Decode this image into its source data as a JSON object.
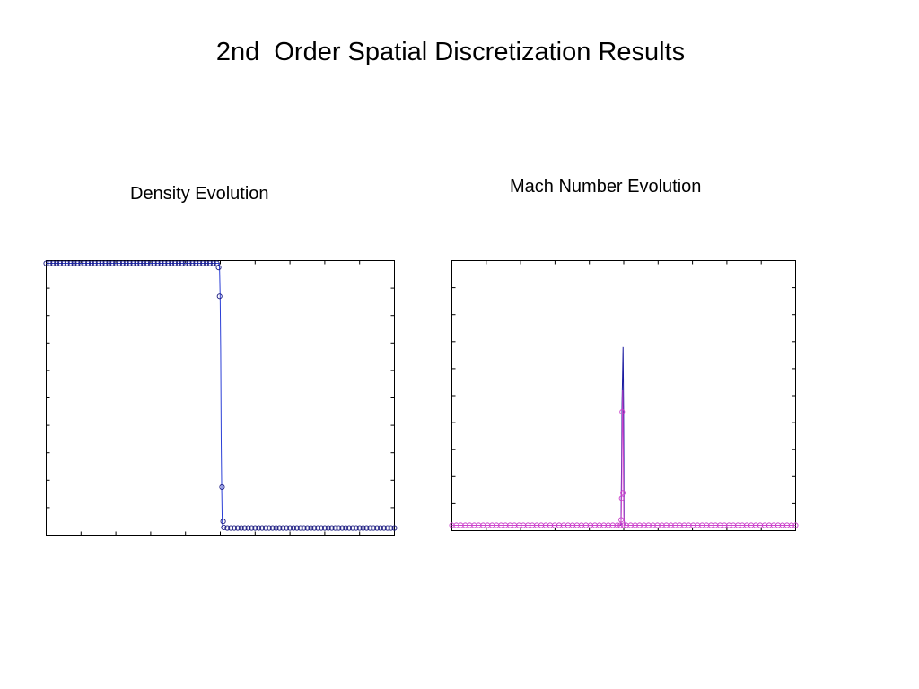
{
  "page": {
    "title": "2nd  Order Spatial Discretization Results"
  },
  "chart_data": [
    {
      "type": "line",
      "title": "Density Evolution",
      "xlim": [
        0,
        1
      ],
      "ylim": [
        0,
        1
      ],
      "xticks": [
        0.1,
        0.2,
        0.3,
        0.4,
        0.5,
        0.6,
        0.7,
        0.8,
        0.9
      ],
      "yticks": [
        0.1,
        0.2,
        0.3,
        0.4,
        0.5,
        0.6,
        0.7,
        0.8,
        0.9
      ],
      "grid": false,
      "series": [
        {
          "style": "line",
          "color": "#2b3fd6",
          "x": [
            0.0,
            0.497,
            0.498,
            0.4995,
            0.501,
            0.5025,
            0.504,
            0.5055,
            0.507,
            0.51,
            1.0
          ],
          "y": [
            0.99,
            0.99,
            0.96,
            0.87,
            0.68,
            0.35,
            0.17,
            0.05,
            0.03,
            0.026,
            0.026
          ]
        },
        {
          "style": "markers",
          "color": "#1a1a80",
          "marker": "circle",
          "x": [
            0.0,
            0.01,
            0.02,
            0.03,
            0.04,
            0.05,
            0.06,
            0.07,
            0.08,
            0.09,
            0.1,
            0.11,
            0.12,
            0.13,
            0.14,
            0.15,
            0.16,
            0.17,
            0.18,
            0.19,
            0.2,
            0.21,
            0.22,
            0.23,
            0.24,
            0.25,
            0.26,
            0.27,
            0.28,
            0.29,
            0.3,
            0.31,
            0.32,
            0.33,
            0.34,
            0.35,
            0.36,
            0.37,
            0.38,
            0.39,
            0.4,
            0.41,
            0.42,
            0.43,
            0.44,
            0.45,
            0.46,
            0.47,
            0.48,
            0.49,
            0.495,
            0.498,
            0.505,
            0.508,
            0.51,
            0.52,
            0.53,
            0.54,
            0.55,
            0.56,
            0.57,
            0.58,
            0.59,
            0.6,
            0.61,
            0.62,
            0.63,
            0.64,
            0.65,
            0.66,
            0.67,
            0.68,
            0.69,
            0.7,
            0.71,
            0.72,
            0.73,
            0.74,
            0.75,
            0.76,
            0.77,
            0.78,
            0.79,
            0.8,
            0.81,
            0.82,
            0.83,
            0.84,
            0.85,
            0.86,
            0.87,
            0.88,
            0.89,
            0.9,
            0.91,
            0.92,
            0.93,
            0.94,
            0.95,
            0.96,
            0.97,
            0.98,
            0.99,
            1.0
          ],
          "y": [
            0.99,
            0.99,
            0.99,
            0.99,
            0.99,
            0.99,
            0.99,
            0.99,
            0.99,
            0.99,
            0.99,
            0.99,
            0.99,
            0.99,
            0.99,
            0.99,
            0.99,
            0.99,
            0.99,
            0.99,
            0.99,
            0.99,
            0.99,
            0.99,
            0.99,
            0.99,
            0.99,
            0.99,
            0.99,
            0.99,
            0.99,
            0.99,
            0.99,
            0.99,
            0.99,
            0.99,
            0.99,
            0.99,
            0.99,
            0.99,
            0.99,
            0.99,
            0.99,
            0.99,
            0.99,
            0.99,
            0.99,
            0.99,
            0.99,
            0.99,
            0.975,
            0.87,
            0.175,
            0.05,
            0.028,
            0.026,
            0.026,
            0.026,
            0.026,
            0.026,
            0.026,
            0.026,
            0.026,
            0.026,
            0.026,
            0.026,
            0.026,
            0.026,
            0.026,
            0.026,
            0.026,
            0.026,
            0.026,
            0.026,
            0.026,
            0.026,
            0.026,
            0.026,
            0.026,
            0.026,
            0.026,
            0.026,
            0.026,
            0.026,
            0.026,
            0.026,
            0.026,
            0.026,
            0.026,
            0.026,
            0.026,
            0.026,
            0.026,
            0.026,
            0.026,
            0.026,
            0.026,
            0.026,
            0.026,
            0.026,
            0.026,
            0.026,
            0.026,
            0.026
          ]
        }
      ]
    },
    {
      "type": "line",
      "title": "Mach Number Evolution",
      "xlim": [
        0,
        1
      ],
      "ylim": [
        0,
        1
      ],
      "xticks": [
        0.1,
        0.2,
        0.3,
        0.4,
        0.5,
        0.6,
        0.7,
        0.8,
        0.9
      ],
      "yticks": [
        0.1,
        0.2,
        0.3,
        0.4,
        0.5,
        0.6,
        0.7,
        0.8,
        0.9
      ],
      "grid": false,
      "series": [
        {
          "style": "line",
          "color": "#1a1aa0",
          "x": [
            0.0,
            0.49,
            0.492,
            0.4935,
            0.495,
            0.4965,
            0.498,
            0.4995,
            0.501,
            0.503,
            1.0
          ],
          "y": [
            0.02,
            0.02,
            0.02,
            0.22,
            0.47,
            0.57,
            0.68,
            0.46,
            0.04,
            0.02,
            0.02
          ]
        },
        {
          "style": "line",
          "color": "#cc44cc",
          "x": [
            0.0,
            0.49,
            0.4925,
            0.494,
            0.4955,
            0.497,
            0.4985,
            0.5,
            0.502,
            1.0
          ],
          "y": [
            0.02,
            0.02,
            0.04,
            0.14,
            0.38,
            0.52,
            0.3,
            0.06,
            0.02,
            0.02
          ]
        },
        {
          "style": "markers",
          "color": "#cc44cc",
          "marker": "circle",
          "x": [
            0.0,
            0.013,
            0.026,
            0.039,
            0.052,
            0.065,
            0.078,
            0.091,
            0.104,
            0.117,
            0.13,
            0.143,
            0.156,
            0.169,
            0.182,
            0.195,
            0.208,
            0.221,
            0.234,
            0.247,
            0.26,
            0.273,
            0.286,
            0.299,
            0.312,
            0.325,
            0.338,
            0.351,
            0.364,
            0.377,
            0.39,
            0.403,
            0.416,
            0.429,
            0.442,
            0.455,
            0.468,
            0.481,
            0.49,
            0.4925,
            0.494,
            0.4955,
            0.4975,
            0.5,
            0.507,
            0.52,
            0.533,
            0.546,
            0.559,
            0.572,
            0.585,
            0.598,
            0.611,
            0.624,
            0.637,
            0.65,
            0.663,
            0.676,
            0.689,
            0.702,
            0.715,
            0.728,
            0.741,
            0.754,
            0.767,
            0.78,
            0.793,
            0.806,
            0.819,
            0.832,
            0.845,
            0.858,
            0.871,
            0.884,
            0.897,
            0.91,
            0.923,
            0.936,
            0.949,
            0.962,
            0.975,
            0.988,
            1.0
          ],
          "y": [
            0.02,
            0.02,
            0.02,
            0.02,
            0.02,
            0.02,
            0.02,
            0.02,
            0.02,
            0.02,
            0.02,
            0.02,
            0.02,
            0.02,
            0.02,
            0.02,
            0.02,
            0.02,
            0.02,
            0.02,
            0.02,
            0.02,
            0.02,
            0.02,
            0.02,
            0.02,
            0.02,
            0.02,
            0.02,
            0.02,
            0.02,
            0.02,
            0.02,
            0.02,
            0.02,
            0.02,
            0.02,
            0.02,
            0.02,
            0.04,
            0.12,
            0.44,
            0.14,
            0.02,
            0.02,
            0.02,
            0.02,
            0.02,
            0.02,
            0.02,
            0.02,
            0.02,
            0.02,
            0.02,
            0.02,
            0.02,
            0.02,
            0.02,
            0.02,
            0.02,
            0.02,
            0.02,
            0.02,
            0.02,
            0.02,
            0.02,
            0.02,
            0.02,
            0.02,
            0.02,
            0.02,
            0.02,
            0.02,
            0.02,
            0.02,
            0.02,
            0.02,
            0.02,
            0.02,
            0.02,
            0.02,
            0.02,
            0.02
          ]
        }
      ]
    }
  ]
}
